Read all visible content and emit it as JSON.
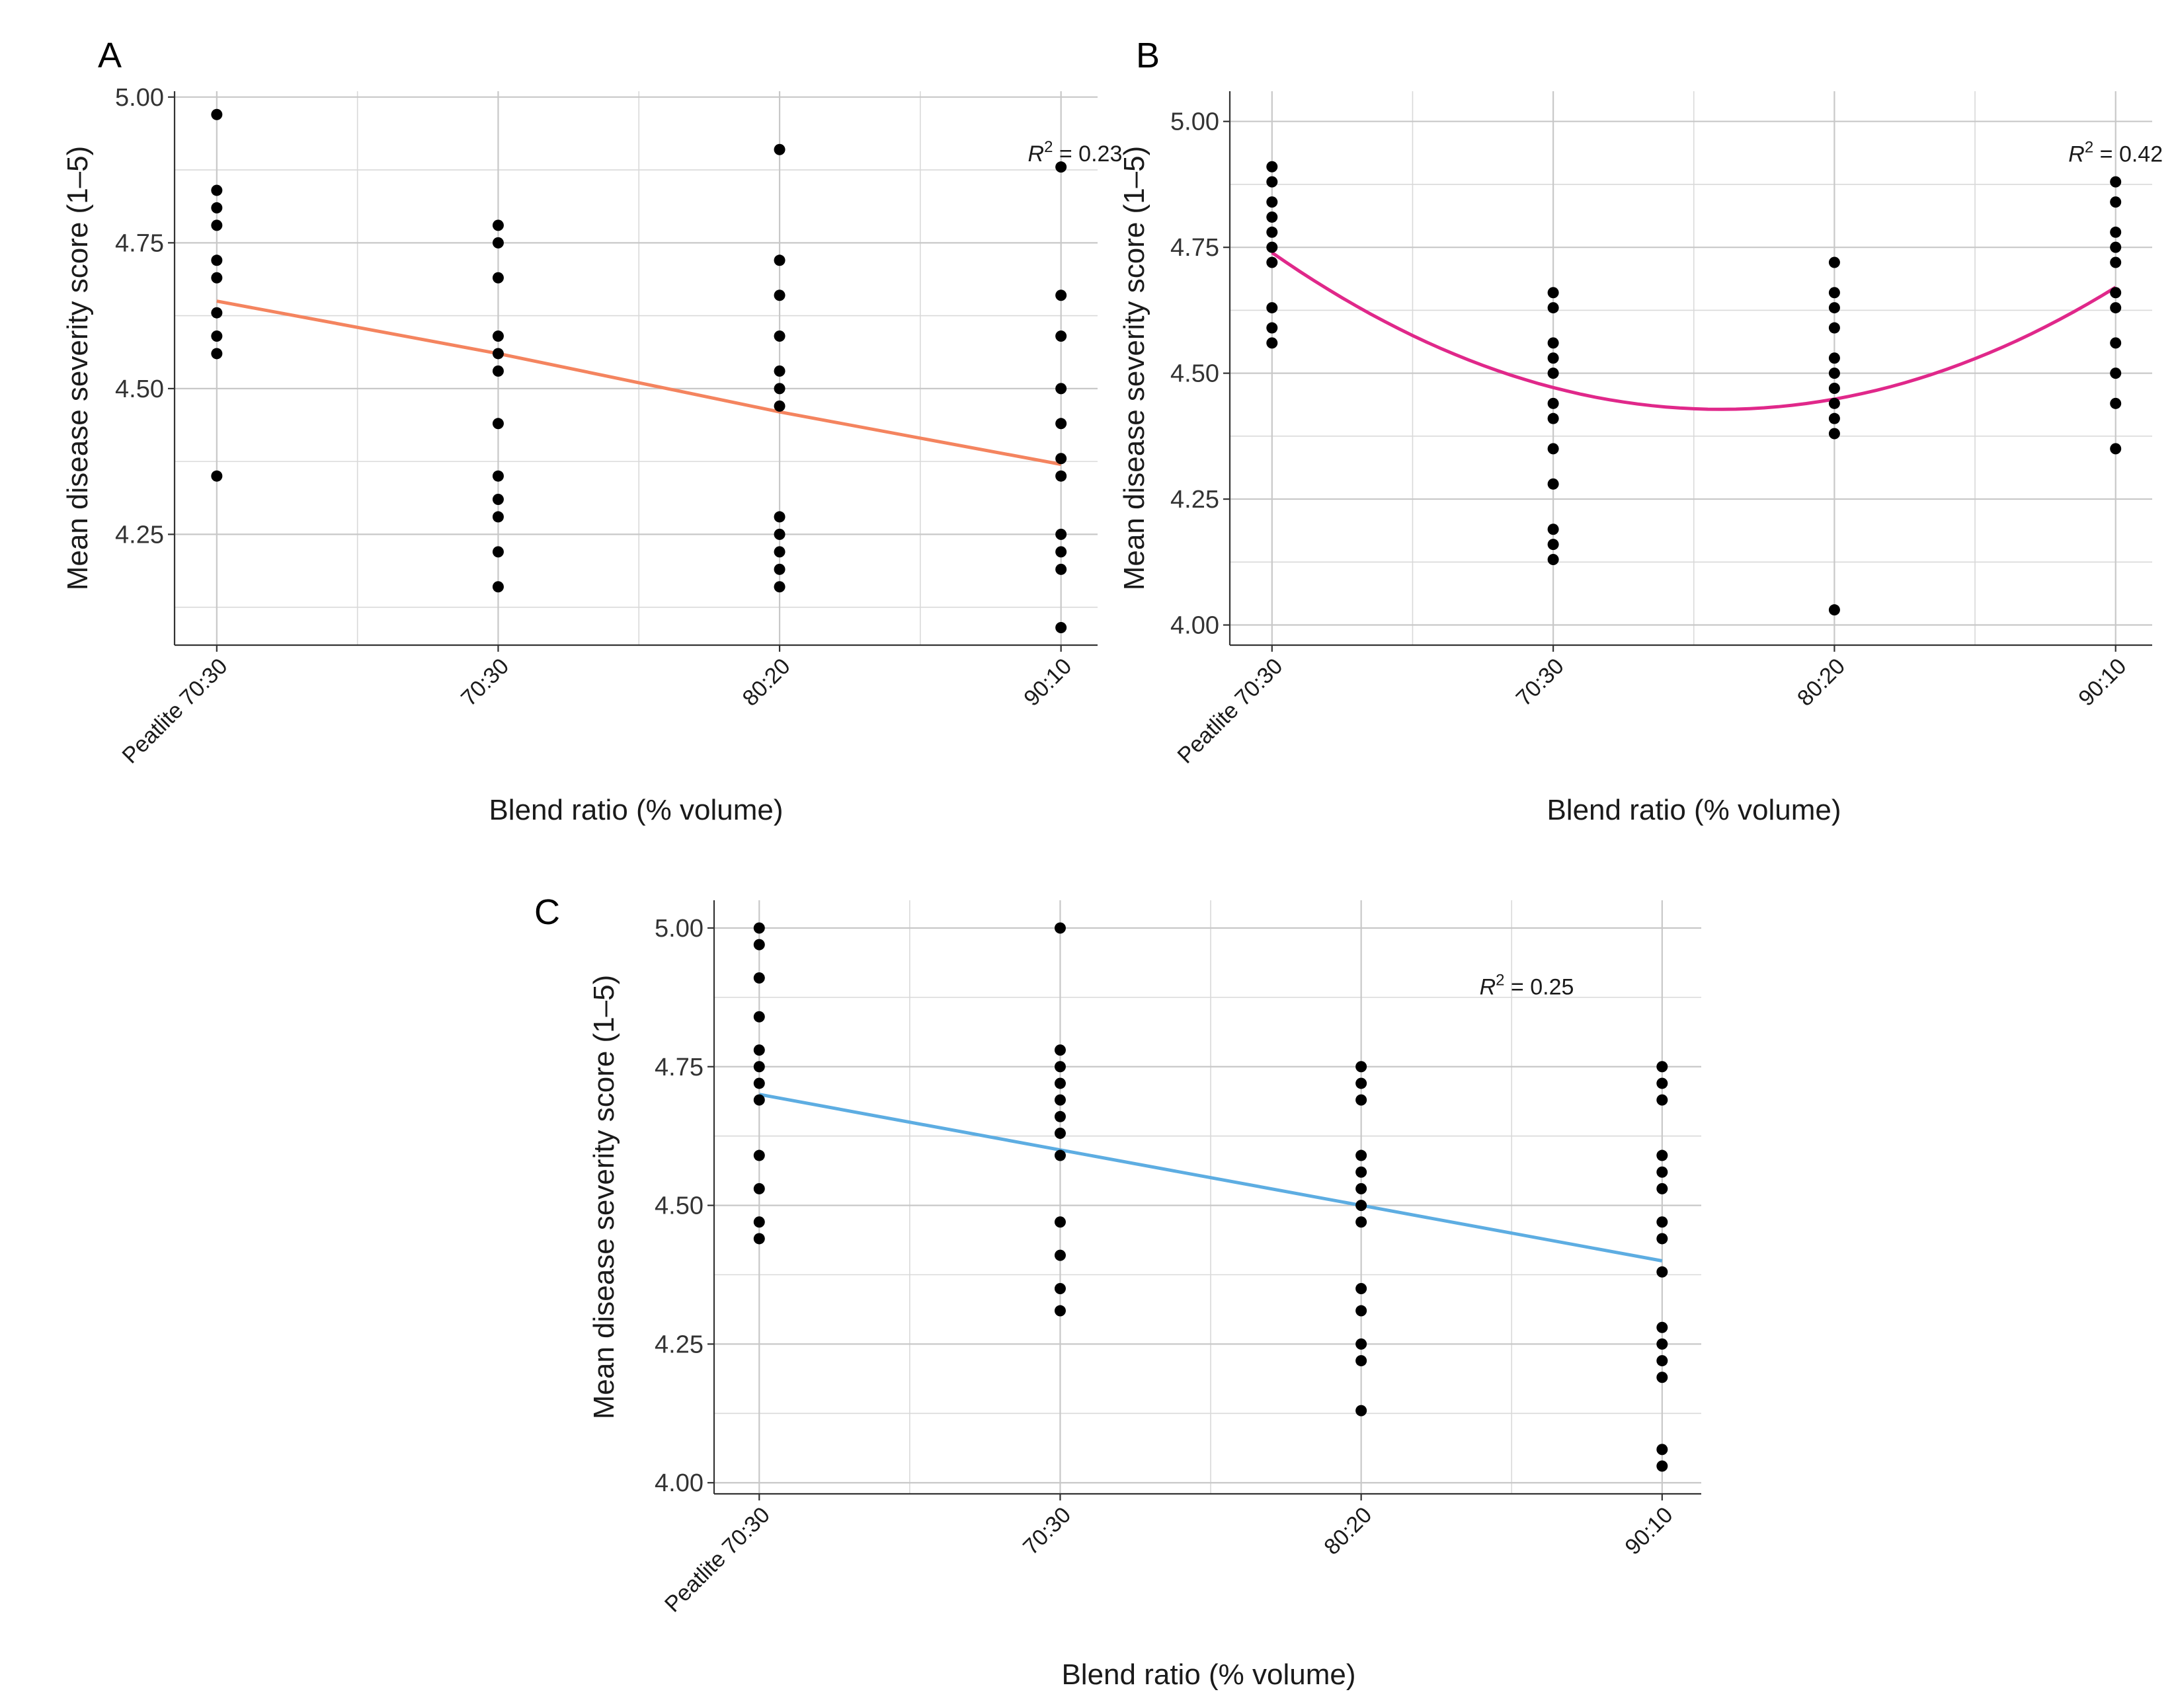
{
  "chart_data": [
    {
      "panel": "A",
      "type": "scatter",
      "fit": "linear",
      "xlabel": "Blend ratio (% volume)",
      "ylabel": "Mean disease severity score (1–5)",
      "categories": [
        "Peatlite 70:30",
        "70:30",
        "80:20",
        "90:10"
      ],
      "yticks": [
        "4.25",
        "4.50",
        "4.75",
        "5.00"
      ],
      "ylim": [
        4.06,
        5.01
      ],
      "annotation": {
        "r": "R",
        "sup": "2",
        "rest": " = 0.23"
      },
      "annotation_pos": [
        3.05,
        4.89
      ],
      "line_color": "#f4845f",
      "fit_values": [
        4.65,
        4.56,
        4.46,
        4.37
      ],
      "points": [
        [
          4.97,
          4.84,
          4.81,
          4.78,
          4.72,
          4.69,
          4.63,
          4.59,
          4.56,
          4.35
        ],
        [
          4.78,
          4.75,
          4.69,
          4.59,
          4.56,
          4.53,
          4.44,
          4.35,
          4.31,
          4.28,
          4.22,
          4.16
        ],
        [
          4.91,
          4.72,
          4.66,
          4.59,
          4.53,
          4.5,
          4.47,
          4.28,
          4.25,
          4.22,
          4.19,
          4.16
        ],
        [
          4.88,
          4.66,
          4.59,
          4.5,
          4.44,
          4.38,
          4.35,
          4.25,
          4.22,
          4.19,
          4.09
        ]
      ]
    },
    {
      "panel": "B",
      "type": "scatter",
      "fit": "quadratic",
      "xlabel": "Blend ratio (% volume)",
      "ylabel": "Mean disease severity score (1–5)",
      "categories": [
        "Peatlite 70:30",
        "70:30",
        "80:20",
        "90:10"
      ],
      "yticks": [
        "4.00",
        "4.25",
        "4.50",
        "4.75",
        "5.00"
      ],
      "ylim": [
        3.96,
        5.06
      ],
      "annotation": {
        "r": "R",
        "sup": "2",
        "rest": " = 0.42"
      },
      "annotation_pos": [
        3.0,
        4.92
      ],
      "line_color": "#e0288a",
      "fit_values": [
        4.74,
        4.47,
        4.45,
        4.67
      ],
      "points": [
        [
          4.91,
          4.88,
          4.84,
          4.81,
          4.78,
          4.75,
          4.72,
          4.63,
          4.59,
          4.56
        ],
        [
          4.66,
          4.63,
          4.56,
          4.53,
          4.5,
          4.44,
          4.41,
          4.35,
          4.28,
          4.19,
          4.16,
          4.13
        ],
        [
          4.72,
          4.66,
          4.63,
          4.59,
          4.53,
          4.5,
          4.47,
          4.44,
          4.41,
          4.38,
          4.03
        ],
        [
          4.88,
          4.84,
          4.78,
          4.75,
          4.72,
          4.66,
          4.63,
          4.56,
          4.5,
          4.44,
          4.35
        ]
      ]
    },
    {
      "panel": "C",
      "type": "scatter",
      "fit": "linear",
      "xlabel": "Blend ratio (% volume)",
      "ylabel": "Mean disease severity score (1–5)",
      "categories": [
        "Peatlite 70:30",
        "70:30",
        "80:20",
        "90:10"
      ],
      "yticks": [
        "4.00",
        "4.25",
        "4.50",
        "4.75",
        "5.00"
      ],
      "ylim": [
        3.98,
        5.05
      ],
      "annotation": {
        "r": "R",
        "sup": "2",
        "rest": " = 0.25"
      },
      "annotation_pos": [
        2.55,
        4.88
      ],
      "line_color": "#5dade2",
      "fit_values": [
        4.7,
        4.6,
        4.5,
        4.4
      ],
      "points": [
        [
          5.0,
          4.97,
          4.91,
          4.84,
          4.78,
          4.75,
          4.72,
          4.69,
          4.59,
          4.53,
          4.47,
          4.44
        ],
        [
          5.0,
          4.78,
          4.75,
          4.72,
          4.69,
          4.66,
          4.63,
          4.59,
          4.47,
          4.41,
          4.35,
          4.31
        ],
        [
          4.75,
          4.72,
          4.69,
          4.59,
          4.56,
          4.53,
          4.5,
          4.47,
          4.35,
          4.31,
          4.25,
          4.22,
          4.13
        ],
        [
          4.75,
          4.72,
          4.69,
          4.59,
          4.56,
          4.53,
          4.47,
          4.44,
          4.38,
          4.28,
          4.25,
          4.22,
          4.19,
          4.06,
          4.03
        ]
      ]
    }
  ]
}
